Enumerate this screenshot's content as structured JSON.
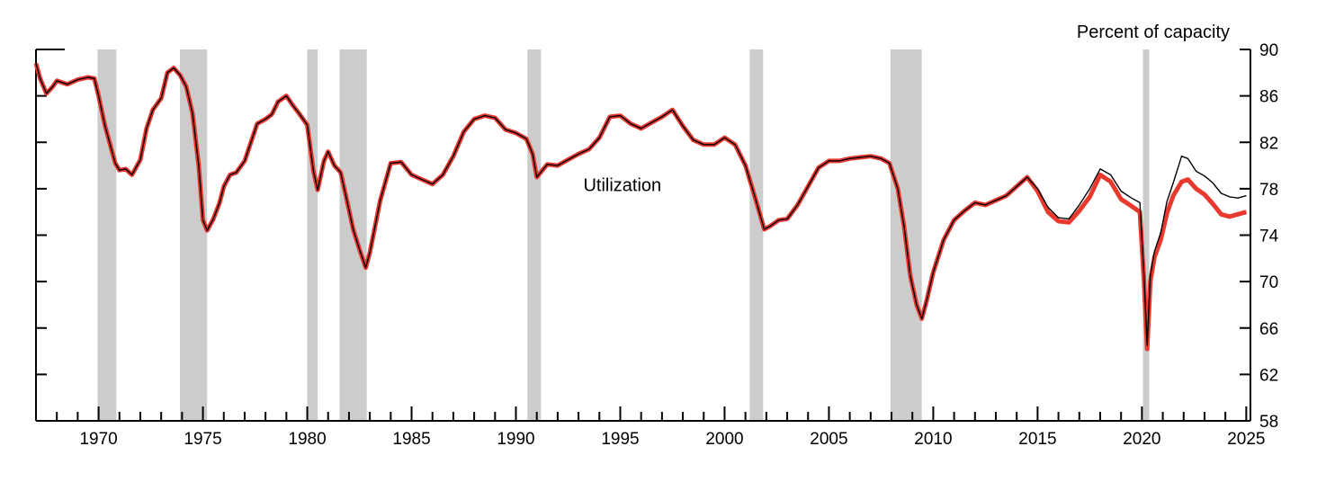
{
  "chart_data": {
    "type": "line",
    "title": "",
    "xlabel": "",
    "ylabel": "Percent of capacity",
    "xlim": [
      1967.0,
      2025.2
    ],
    "ylim": [
      58,
      90
    ],
    "y_ticks": [
      58,
      62,
      66,
      70,
      74,
      78,
      82,
      86,
      90
    ],
    "x_ticks": [
      1970,
      1975,
      1980,
      1985,
      1990,
      1995,
      2000,
      2005,
      2010,
      2015,
      2020,
      2025
    ],
    "x_tick_labels": [
      "1970",
      "1975",
      "1980",
      "1985",
      "1990",
      "1995",
      "2000",
      "2005",
      "2010",
      "2015",
      "2020",
      "2025"
    ],
    "y_axis_side": "right",
    "grid": false,
    "legend": "none",
    "annotations": [
      {
        "text": "Utilization",
        "x": 1995.1,
        "y": 77.8
      }
    ],
    "shaded_regions": [
      {
        "start": 1969.95,
        "end": 1970.85
      },
      {
        "start": 1973.9,
        "end": 1975.2
      },
      {
        "start": 1980.0,
        "end": 1980.5
      },
      {
        "start": 1981.55,
        "end": 1982.85
      },
      {
        "start": 1990.55,
        "end": 1991.2
      },
      {
        "start": 2001.2,
        "end": 2001.85
      },
      {
        "start": 2007.95,
        "end": 2009.45
      },
      {
        "start": 2020.05,
        "end": 2020.35
      }
    ],
    "colors": {
      "shading": "#cccccc",
      "series_a": "#000000",
      "series_b": "#e8392e"
    },
    "series": [
      {
        "x": [
          1967.0,
          1967.2,
          1967.5,
          1967.8,
          1968.0,
          1968.5,
          1969.0,
          1969.5,
          1969.8,
          1970.0,
          1970.3,
          1970.6,
          1970.8,
          1971.0,
          1971.3,
          1971.6,
          1972.0,
          1972.3,
          1972.6,
          1973.0,
          1973.3,
          1973.6,
          1973.9,
          1974.2,
          1974.5,
          1974.8,
          1975.0,
          1975.2,
          1975.5,
          1975.8,
          1976.0,
          1976.3,
          1976.6,
          1977.0,
          1977.3,
          1977.6,
          1978.0,
          1978.3,
          1978.6,
          1979.0,
          1979.3,
          1979.6,
          1980.0,
          1980.3,
          1980.5,
          1980.8,
          1981.0,
          1981.3,
          1981.6,
          1981.9,
          1982.2,
          1982.5,
          1982.8,
          1983.0,
          1983.5,
          1984.0,
          1984.5,
          1985.0,
          1985.5,
          1986.0,
          1986.5,
          1987.0,
          1987.5,
          1988.0,
          1988.5,
          1989.0,
          1989.5,
          1990.0,
          1990.5,
          1990.8,
          1991.0,
          1991.5,
          1992.0,
          1992.5,
          1993.0,
          1993.5,
          1994.0,
          1994.5,
          1995.0,
          1995.5,
          1996.0,
          1996.5,
          1997.0,
          1997.5,
          1998.0,
          1998.5,
          1999.0,
          1999.5,
          2000.0,
          2000.5,
          2001.0,
          2001.5,
          2001.9,
          2002.2,
          2002.6,
          2003.0,
          2003.5,
          2004.0,
          2004.5,
          2005.0,
          2005.5,
          2006.0,
          2006.5,
          2007.0,
          2007.5,
          2007.9,
          2008.3,
          2008.6,
          2008.9,
          2009.2,
          2009.45,
          2009.7,
          2010.0,
          2010.5,
          2011.0,
          2011.5,
          2012.0,
          2012.5,
          2013.0,
          2013.5,
          2014.0,
          2014.5,
          2015.0,
          2015.5,
          2016.0,
          2016.5,
          2017.0,
          2017.5,
          2018.0,
          2018.5,
          2019.0,
          2019.5,
          2019.9,
          2020.1,
          2020.25,
          2020.4,
          2020.6,
          2020.9,
          2021.2,
          2021.5,
          2021.9,
          2022.2,
          2022.6,
          2023.0,
          2023.4,
          2023.8,
          2024.2,
          2024.6,
          2025.0
        ],
        "values": [
          88.8,
          87.5,
          86.2,
          86.8,
          87.3,
          87.0,
          87.4,
          87.6,
          87.5,
          86.0,
          83.5,
          81.5,
          80.2,
          79.6,
          79.7,
          79.2,
          80.5,
          83.2,
          84.8,
          85.8,
          88.0,
          88.4,
          87.8,
          86.8,
          84.5,
          80.0,
          75.3,
          74.4,
          75.4,
          76.8,
          78.2,
          79.2,
          79.4,
          80.4,
          82.0,
          83.6,
          84.0,
          84.4,
          85.5,
          86.0,
          85.2,
          84.5,
          83.5,
          79.5,
          77.9,
          80.4,
          81.2,
          80.0,
          79.4,
          77.0,
          74.5,
          72.8,
          71.2,
          72.5,
          77.0,
          80.2,
          80.3,
          79.2,
          78.8,
          78.4,
          79.2,
          80.8,
          82.9,
          84.0,
          84.3,
          84.1,
          83.1,
          82.8,
          82.3,
          81.0,
          79.0,
          80.1,
          80.0,
          80.5,
          81.0,
          81.4,
          82.4,
          84.2,
          84.3,
          83.6,
          83.2,
          83.7,
          84.2,
          84.8,
          83.4,
          82.2,
          81.8,
          81.8,
          82.4,
          81.8,
          80.0,
          77.0,
          74.5,
          74.8,
          75.3,
          75.4,
          76.6,
          78.2,
          79.8,
          80.4,
          80.4,
          80.6,
          80.7,
          80.8,
          80.6,
          80.2,
          78.0,
          74.8,
          70.5,
          68.0,
          66.8,
          68.5,
          70.8,
          73.6,
          75.3,
          76.1,
          76.8,
          76.6,
          77.0,
          77.4,
          78.2,
          79.0,
          78.0,
          76.4,
          75.5,
          75.4,
          76.6,
          78.0,
          79.7,
          79.2,
          77.8,
          77.2,
          76.8,
          70.5,
          64.5,
          70.5,
          72.6,
          74.2,
          76.9,
          78.5,
          80.8,
          80.6,
          79.5,
          79.1,
          78.5,
          77.6,
          77.3,
          77.2,
          77.4
        ]
      },
      {
        "x": [
          1967.0,
          1967.2,
          1967.5,
          1967.8,
          1968.0,
          1968.5,
          1969.0,
          1969.5,
          1969.8,
          1970.0,
          1970.3,
          1970.6,
          1970.8,
          1971.0,
          1971.3,
          1971.6,
          1972.0,
          1972.3,
          1972.6,
          1973.0,
          1973.3,
          1973.6,
          1973.9,
          1974.2,
          1974.5,
          1974.8,
          1975.0,
          1975.2,
          1975.5,
          1975.8,
          1976.0,
          1976.3,
          1976.6,
          1977.0,
          1977.3,
          1977.6,
          1978.0,
          1978.3,
          1978.6,
          1979.0,
          1979.3,
          1979.6,
          1980.0,
          1980.3,
          1980.5,
          1980.8,
          1981.0,
          1981.3,
          1981.6,
          1981.9,
          1982.2,
          1982.5,
          1982.8,
          1983.0,
          1983.5,
          1984.0,
          1984.5,
          1985.0,
          1985.5,
          1986.0,
          1986.5,
          1987.0,
          1987.5,
          1988.0,
          1988.5,
          1989.0,
          1989.5,
          1990.0,
          1990.5,
          1990.8,
          1991.0,
          1991.5,
          1992.0,
          1992.5,
          1993.0,
          1993.5,
          1994.0,
          1994.5,
          1995.0,
          1995.5,
          1996.0,
          1996.5,
          1997.0,
          1997.5,
          1998.0,
          1998.5,
          1999.0,
          1999.5,
          2000.0,
          2000.5,
          2001.0,
          2001.5,
          2001.9,
          2002.2,
          2002.6,
          2003.0,
          2003.5,
          2004.0,
          2004.5,
          2005.0,
          2005.5,
          2006.0,
          2006.5,
          2007.0,
          2007.5,
          2007.9,
          2008.3,
          2008.6,
          2008.9,
          2009.2,
          2009.45,
          2009.7,
          2010.0,
          2010.5,
          2011.0,
          2011.5,
          2012.0,
          2012.5,
          2013.0,
          2013.5,
          2014.0,
          2014.5,
          2015.0,
          2015.5,
          2016.0,
          2016.5,
          2017.0,
          2017.5,
          2018.0,
          2018.5,
          2019.0,
          2019.5,
          2019.9,
          2020.1,
          2020.25,
          2020.4,
          2020.6,
          2020.9,
          2021.2,
          2021.5,
          2021.9,
          2022.2,
          2022.6,
          2023.0,
          2023.4,
          2023.8,
          2024.2,
          2024.6,
          2025.0
        ],
        "values": [
          88.8,
          87.5,
          86.2,
          86.8,
          87.3,
          87.0,
          87.4,
          87.6,
          87.5,
          86.0,
          83.5,
          81.5,
          80.2,
          79.6,
          79.7,
          79.2,
          80.5,
          83.2,
          84.8,
          85.8,
          88.0,
          88.4,
          87.8,
          86.8,
          84.5,
          80.0,
          75.3,
          74.4,
          75.4,
          76.8,
          78.2,
          79.2,
          79.4,
          80.4,
          82.0,
          83.6,
          84.0,
          84.4,
          85.5,
          86.0,
          85.2,
          84.5,
          83.5,
          79.5,
          77.9,
          80.4,
          81.2,
          80.0,
          79.4,
          77.0,
          74.5,
          72.8,
          71.2,
          72.5,
          77.0,
          80.2,
          80.3,
          79.2,
          78.8,
          78.4,
          79.2,
          80.8,
          82.9,
          84.0,
          84.3,
          84.1,
          83.1,
          82.8,
          82.3,
          81.0,
          79.0,
          80.1,
          80.0,
          80.5,
          81.0,
          81.4,
          82.4,
          84.2,
          84.3,
          83.6,
          83.2,
          83.7,
          84.2,
          84.8,
          83.4,
          82.2,
          81.8,
          81.8,
          82.4,
          81.8,
          80.0,
          77.0,
          74.5,
          74.8,
          75.3,
          75.4,
          76.6,
          78.2,
          79.8,
          80.4,
          80.4,
          80.6,
          80.7,
          80.8,
          80.6,
          80.2,
          78.0,
          74.8,
          70.5,
          68.0,
          66.8,
          68.5,
          70.8,
          73.6,
          75.3,
          76.1,
          76.8,
          76.6,
          77.0,
          77.4,
          78.2,
          79.0,
          77.8,
          76.0,
          75.2,
          75.1,
          76.1,
          77.3,
          79.2,
          78.6,
          77.1,
          76.5,
          76.0,
          70.0,
          64.2,
          70.0,
          72.1,
          73.6,
          75.9,
          77.4,
          78.6,
          78.8,
          78.0,
          77.5,
          76.7,
          75.8,
          75.6,
          75.8,
          76.0
        ]
      }
    ]
  }
}
